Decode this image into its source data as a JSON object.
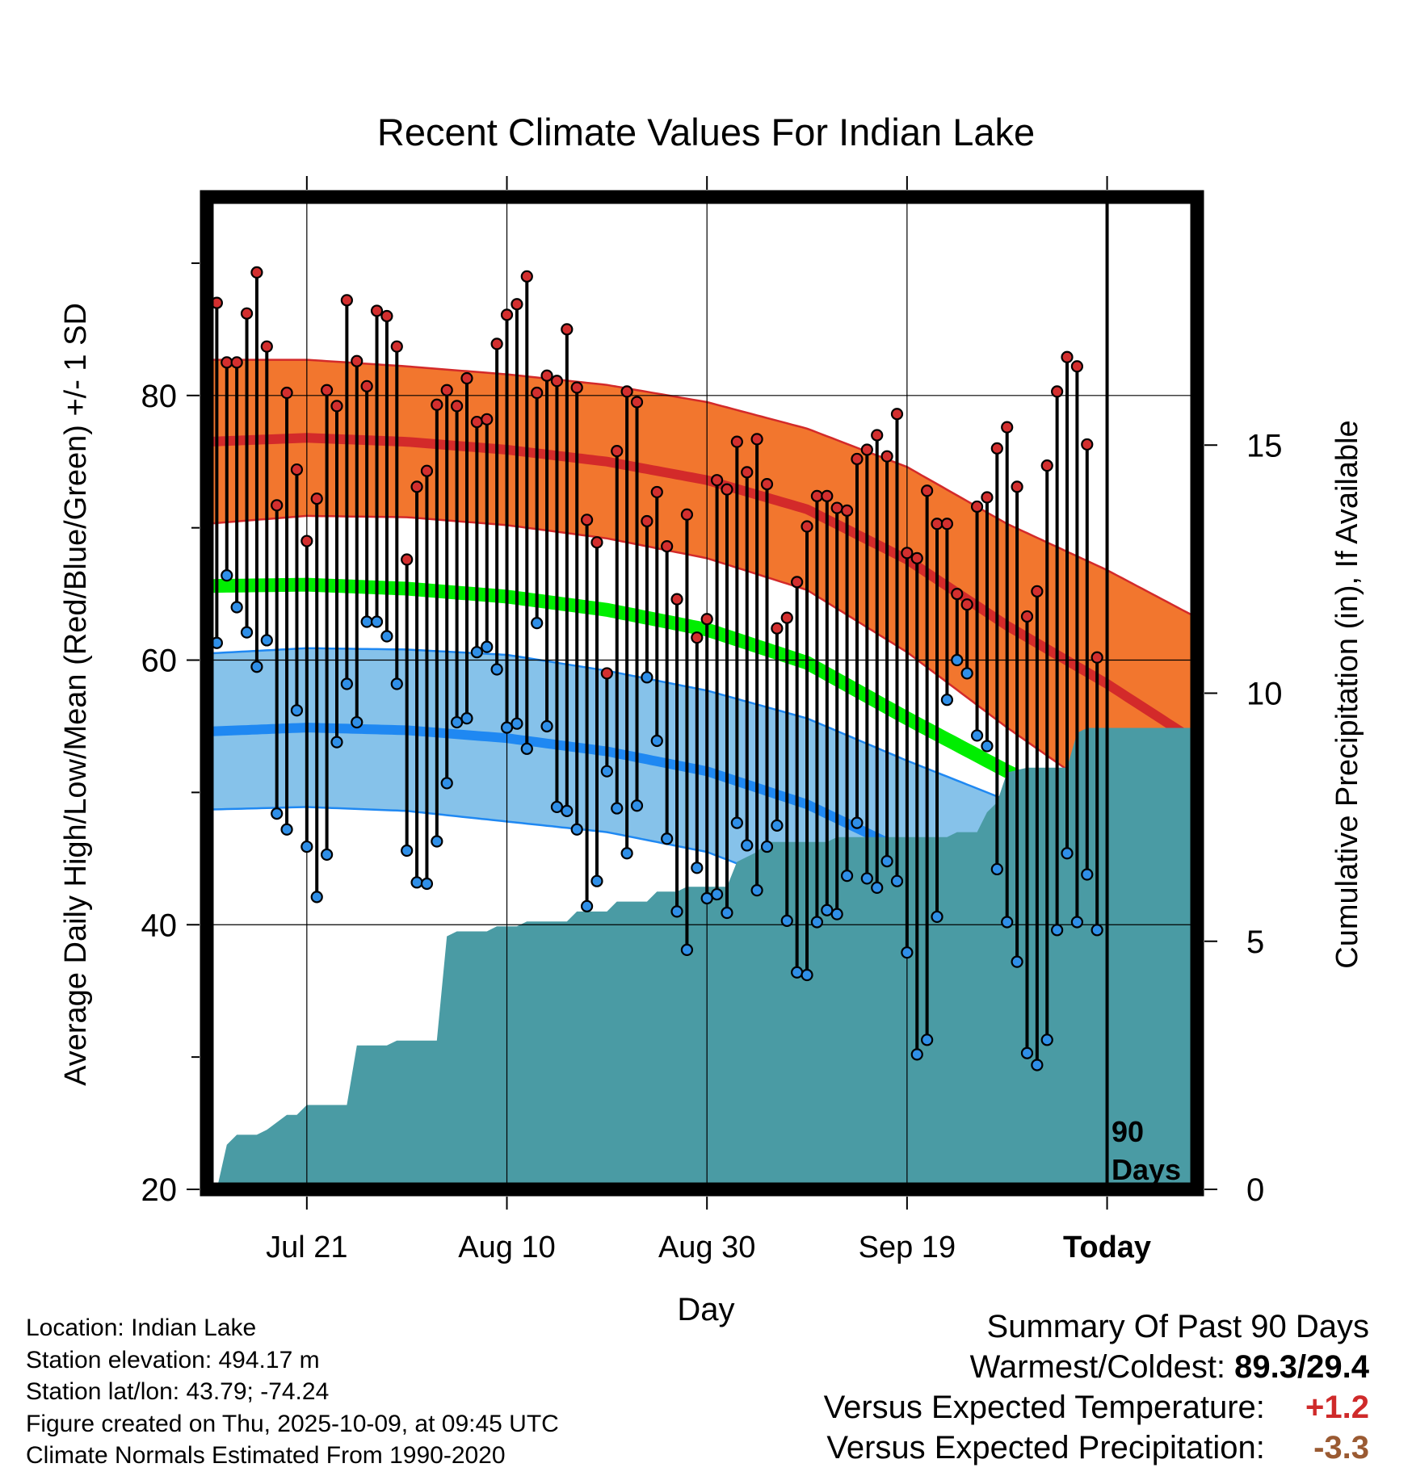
{
  "chart_data": {
    "type": "line",
    "title": "Recent Climate Values For Indian Lake",
    "xlabel": "Day",
    "ylabel": "Average Daily High/Low/Mean (Red/Blue/Green) +/- 1 SD",
    "y2label": "Cumulative Precipitation (in), If Available",
    "xlim": [
      -90,
      9
    ],
    "ylim": [
      20,
      95
    ],
    "y2lim": [
      0,
      20
    ],
    "y_ticks": [
      20,
      40,
      60,
      80
    ],
    "y_ticks_minor": [
      30,
      50,
      70,
      90
    ],
    "y2_ticks": [
      0,
      5,
      10,
      15
    ],
    "x_ticks": [
      {
        "day": -80,
        "label": "Jul 21"
      },
      {
        "day": -60,
        "label": "Aug 10"
      },
      {
        "day": -40,
        "label": "Aug 30"
      },
      {
        "day": -20,
        "label": "Sep 19"
      },
      {
        "day": 0,
        "label": "Today"
      }
    ],
    "today_marker": {
      "day": 0,
      "label_line1": "90",
      "label_line2": "Days"
    },
    "normal_curves": {
      "days": [
        -90,
        -80,
        -70,
        -60,
        -50,
        -40,
        -30,
        -20,
        -10,
        0,
        9
      ],
      "high_mean": [
        76.5,
        76.8,
        76.5,
        75.9,
        75.0,
        73.6,
        71.4,
        67.6,
        62.6,
        58.2,
        53.8
      ],
      "high_sd": [
        6.2,
        5.9,
        5.7,
        5.7,
        5.8,
        5.9,
        6.1,
        7.0,
        7.7,
        8.6,
        9.4
      ],
      "low_mean": [
        54.6,
        54.9,
        54.7,
        54.1,
        53.1,
        51.6,
        49.1,
        45.5,
        41.7,
        37.8,
        34.3
      ],
      "low_sd": [
        5.9,
        6.0,
        6.1,
        6.3,
        6.1,
        6.1,
        6.5,
        6.9,
        7.7,
        7.4,
        8.4
      ],
      "avg_mean": [
        65.6,
        65.7,
        65.4,
        64.8,
        63.8,
        62.3,
        59.8,
        55.6,
        51.6,
        48.0,
        44.3
      ]
    },
    "series": [
      {
        "name": "High",
        "color": "#d32f2f",
        "values": [
          85.0,
          87.0,
          82.5,
          82.5,
          86.2,
          89.3,
          83.7,
          71.7,
          80.2,
          74.4,
          69.0,
          72.2,
          80.4,
          79.2,
          87.2,
          82.6,
          80.7,
          86.4,
          86.0,
          83.7,
          67.6,
          73.1,
          74.3,
          79.3,
          80.4,
          79.2,
          81.3,
          78.0,
          78.2,
          83.9,
          86.1,
          86.9,
          89.0,
          80.2,
          81.5,
          81.1,
          85.0,
          80.6,
          70.6,
          68.9,
          59.0,
          75.8,
          80.3,
          79.5,
          70.5,
          72.7,
          68.6,
          64.6,
          71.0,
          61.7,
          63.1,
          73.6,
          72.9,
          76.5,
          74.2,
          76.7,
          73.3,
          62.4,
          63.2,
          65.9,
          70.1,
          72.4,
          72.4,
          71.5,
          71.3,
          75.2,
          75.9,
          77.0,
          75.4,
          78.6,
          68.1,
          67.7,
          72.8,
          70.3,
          70.3,
          65.0,
          64.2,
          71.6,
          72.3,
          76.0,
          77.6,
          73.1,
          63.3,
          65.2,
          74.7,
          80.3,
          82.9,
          82.2,
          76.3,
          60.2
        ]
      },
      {
        "name": "Low",
        "color": "#2f8fe8",
        "values": [
          60.9,
          61.3,
          66.4,
          64.0,
          62.1,
          59.5,
          61.5,
          48.4,
          47.2,
          56.2,
          45.9,
          42.1,
          45.3,
          53.8,
          58.2,
          55.3,
          62.9,
          62.9,
          61.8,
          58.2,
          45.6,
          43.2,
          43.1,
          46.3,
          50.7,
          55.3,
          55.6,
          60.6,
          61.0,
          59.3,
          54.9,
          55.2,
          53.3,
          62.8,
          55.0,
          48.9,
          48.6,
          47.2,
          41.4,
          43.3,
          51.6,
          48.8,
          45.4,
          49.0,
          58.7,
          53.9,
          46.5,
          41.0,
          38.1,
          44.3,
          42.0,
          42.3,
          40.9,
          47.7,
          46.0,
          42.6,
          45.9,
          47.5,
          40.3,
          36.4,
          36.2,
          40.2,
          41.1,
          40.8,
          43.7,
          47.7,
          43.5,
          42.8,
          44.8,
          43.3,
          37.9,
          30.2,
          31.3,
          40.6,
          57.0,
          60.0,
          59.0,
          54.3,
          53.5,
          44.2,
          40.2,
          37.2,
          30.3,
          29.4,
          31.3,
          39.6,
          45.4,
          40.2,
          43.8,
          39.6
        ]
      }
    ],
    "precipitation": {
      "days": [
        -90,
        -89,
        -88,
        -87,
        -85,
        -84,
        -82,
        -81,
        -80,
        -79,
        -76,
        -75,
        -72,
        -71,
        -67,
        -66,
        -65,
        -62,
        -61,
        -59,
        -58,
        -54,
        -53,
        -50,
        -49,
        -46,
        -45,
        -43,
        -42,
        -38,
        -37,
        -35,
        -34,
        -28,
        -27,
        -16,
        -15,
        -13,
        -12,
        -11,
        -10,
        -8,
        -7,
        -4,
        -3,
        -2,
        0,
        9
      ],
      "values": [
        0.0,
        0.0,
        0.9,
        1.1,
        1.1,
        1.2,
        1.5,
        1.5,
        1.7,
        1.7,
        1.7,
        2.9,
        2.9,
        3.0,
        3.0,
        5.1,
        5.2,
        5.2,
        5.3,
        5.3,
        5.4,
        5.4,
        5.6,
        5.6,
        5.8,
        5.8,
        6.0,
        6.0,
        6.1,
        6.1,
        6.6,
        6.8,
        7.0,
        7.0,
        7.1,
        7.1,
        7.2,
        7.2,
        7.6,
        7.8,
        8.4,
        8.5,
        8.5,
        8.5,
        9.2,
        9.3,
        9.3,
        9.3
      ]
    }
  },
  "info": {
    "location": "Location: Indian Lake",
    "elevation": "Station elevation: 494.17 m",
    "latlon": "Station lat/lon: 43.79; -74.24",
    "created": "Figure created on Thu, 2025-10-09, at 09:45 UTC",
    "normals": "Climate Normals Estimated From 1990-2020"
  },
  "summary": {
    "title": "Summary Of Past 90 Days",
    "warmest_label": "Warmest/Coldest:",
    "warmest_value": "89.3/29.4",
    "temp_label": "Versus Expected Temperature:",
    "temp_value": "+1.2",
    "precip_label": "Versus Expected Precipitation:",
    "precip_value": "-3.3"
  },
  "colors": {
    "high_band": "#f2762e",
    "high_line": "#d32a2a",
    "low_band": "#86c2ea",
    "low_line": "#1f88f2",
    "avg_line": "#00ee00",
    "precip_fill": "#4a9ba4",
    "high_dot": "#d32f2f",
    "low_dot": "#2f8fe8"
  }
}
